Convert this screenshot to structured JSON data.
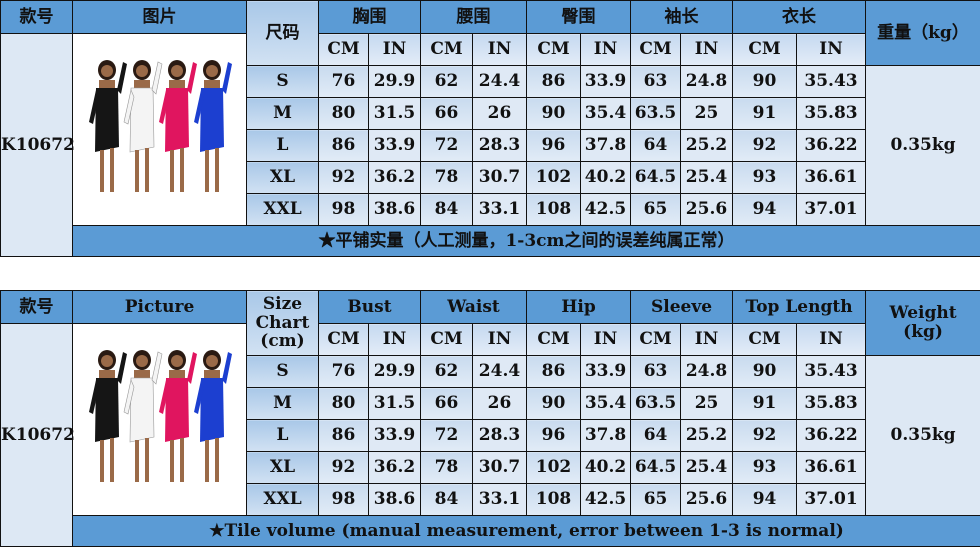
{
  "colors": {
    "header": "#5b9bd5",
    "cell": "#dde8f4",
    "border": "#111111"
  },
  "tables": [
    {
      "headers": {
        "style": "款号",
        "picture": "图片",
        "size": "尺码",
        "groups": [
          "胸围",
          "腰围",
          "臀围",
          "袖长",
          "衣长"
        ],
        "weight": "重量（kg）"
      },
      "footer": "★平铺实量（人工测量，1-3cm之间的误差纯属正常）"
    },
    {
      "headers": {
        "style": "款号",
        "picture": "Picture",
        "size": "Size\nChart\n(cm)",
        "groups": [
          "Bust",
          "Waist",
          "Hip",
          "Sleeve",
          "Top Length"
        ],
        "weight": "Weight\n(kg)"
      },
      "footer": "★Tile volume (manual measurement, error between 1-3 is normal)"
    }
  ],
  "units": {
    "cm": "CM",
    "in": "IN"
  },
  "style_no": "K10672",
  "weight": "0.35kg",
  "dress_colors": [
    "#151515",
    "#f4f4f4",
    "#e0155f",
    "#1c3fd0"
  ],
  "rows": [
    {
      "size": "S",
      "values": [
        "76",
        "29.9",
        "62",
        "24.4",
        "86",
        "33.9",
        "63",
        "24.8",
        "90",
        "35.43"
      ]
    },
    {
      "size": "M",
      "values": [
        "80",
        "31.5",
        "66",
        "26",
        "90",
        "35.4",
        "63.5",
        "25",
        "91",
        "35.83"
      ]
    },
    {
      "size": "L",
      "values": [
        "86",
        "33.9",
        "72",
        "28.3",
        "96",
        "37.8",
        "64",
        "25.2",
        "92",
        "36.22"
      ]
    },
    {
      "size": "XL",
      "values": [
        "92",
        "36.2",
        "78",
        "30.7",
        "102",
        "40.2",
        "64.5",
        "25.4",
        "93",
        "36.61"
      ]
    },
    {
      "size": "XXL",
      "values": [
        "98",
        "38.6",
        "84",
        "33.1",
        "108",
        "42.5",
        "65",
        "25.6",
        "94",
        "37.01"
      ]
    }
  ]
}
